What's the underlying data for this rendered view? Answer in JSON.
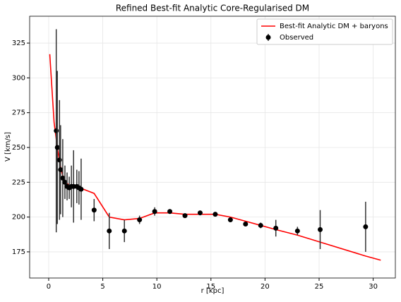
{
  "chart_data": {
    "type": "line",
    "title": "Refined Best-fit Analytic Core-Regularised DM",
    "x_label": "r [kpc]",
    "y_label": "V [km/s]",
    "xlim": [
      -1.76,
      32.05
    ],
    "ylim": [
      156.2,
      344.3
    ],
    "xticks": [
      0,
      5,
      10,
      15,
      20,
      25,
      30
    ],
    "yticks": [
      175,
      200,
      225,
      250,
      275,
      300,
      325
    ],
    "grid": true,
    "legend": "upper right",
    "series": [
      {
        "name": "Best-fit Analytic DM + baryons",
        "type": "line",
        "color": "#ff0000",
        "x": [
          0.1,
          0.5,
          0.8,
          1.0,
          1.3,
          1.6,
          2.0,
          2.4,
          2.8,
          3.2,
          4.2,
          5.6,
          7.0,
          8.4,
          9.8,
          11.2,
          12.6,
          14.0,
          15.4,
          16.8,
          18.2,
          19.6,
          21.0,
          23.0,
          25.1,
          29.3,
          30.7
        ],
        "values": [
          317,
          268,
          250,
          240,
          230,
          225,
          222,
          221,
          221,
          220,
          217,
          200,
          198,
          199,
          203,
          203,
          202,
          202,
          202,
          200,
          197,
          194,
          191,
          187,
          182,
          172,
          169
        ]
      },
      {
        "name": "Observed",
        "type": "errorbar",
        "color": "#000000",
        "x": [
          0.7,
          0.8,
          1.0,
          1.1,
          1.3,
          1.5,
          1.7,
          1.9,
          2.1,
          2.3,
          2.6,
          2.8,
          3.0,
          4.2,
          5.6,
          7.0,
          8.4,
          9.8,
          11.2,
          12.6,
          14.0,
          15.4,
          16.8,
          18.2,
          19.6,
          21.0,
          23.0,
          25.1,
          29.3
        ],
        "values": [
          262,
          250,
          241,
          234,
          228,
          225,
          222,
          221,
          222,
          222,
          222,
          221,
          220,
          205,
          190,
          190,
          198,
          204,
          204,
          201,
          203,
          202,
          198,
          195,
          194,
          192,
          190,
          191,
          193
        ],
        "errors": [
          73,
          55,
          43,
          32,
          28,
          12,
          10,
          8,
          15,
          26,
          12,
          12,
          22,
          8,
          13,
          8,
          3,
          3,
          1,
          1,
          1,
          1,
          1,
          1,
          2,
          6,
          3,
          14,
          18
        ]
      }
    ]
  }
}
